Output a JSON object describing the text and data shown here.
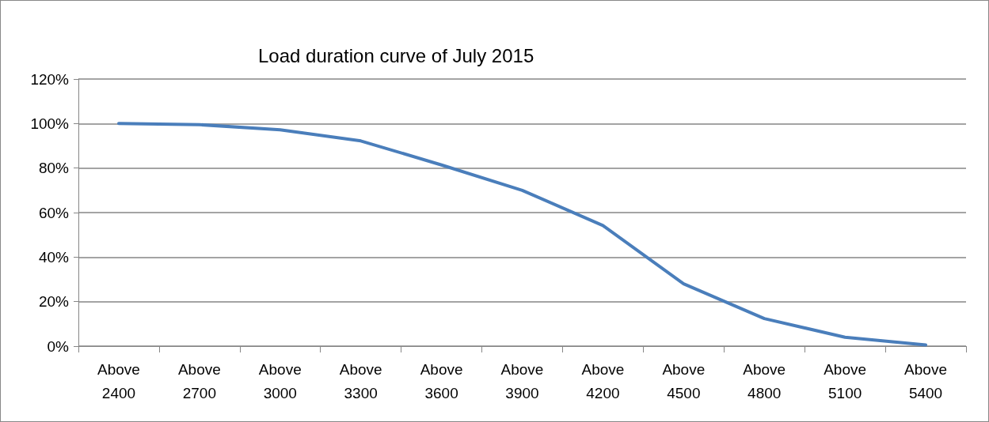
{
  "chart_data": {
    "type": "line",
    "title": "Load duration curve of July 2015",
    "categories": [
      "Above 2400",
      "Above 2700",
      "Above 3000",
      "Above 3300",
      "Above 3600",
      "Above 3900",
      "Above 4200",
      "Above 4500",
      "Above 4800",
      "Above 5100",
      "Above 5400"
    ],
    "series": [
      {
        "color": "#4a7ebb",
        "values": [
          100,
          99.5,
          97.2,
          92.2,
          81.4,
          70,
          54.2,
          28,
          12.4,
          4,
          0.5
        ]
      }
    ],
    "ylim": [
      0,
      120
    ],
    "yticks": [
      {
        "value": 0,
        "label": "0%"
      },
      {
        "value": 20,
        "label": "20%"
      },
      {
        "value": 40,
        "label": "40%"
      },
      {
        "value": 60,
        "label": "60%"
      },
      {
        "value": 80,
        "label": "80%"
      },
      {
        "value": 100,
        "label": "100%"
      },
      {
        "value": 120,
        "label": "120%"
      }
    ],
    "grid": "y",
    "marker": "none",
    "line_style": "solid"
  }
}
